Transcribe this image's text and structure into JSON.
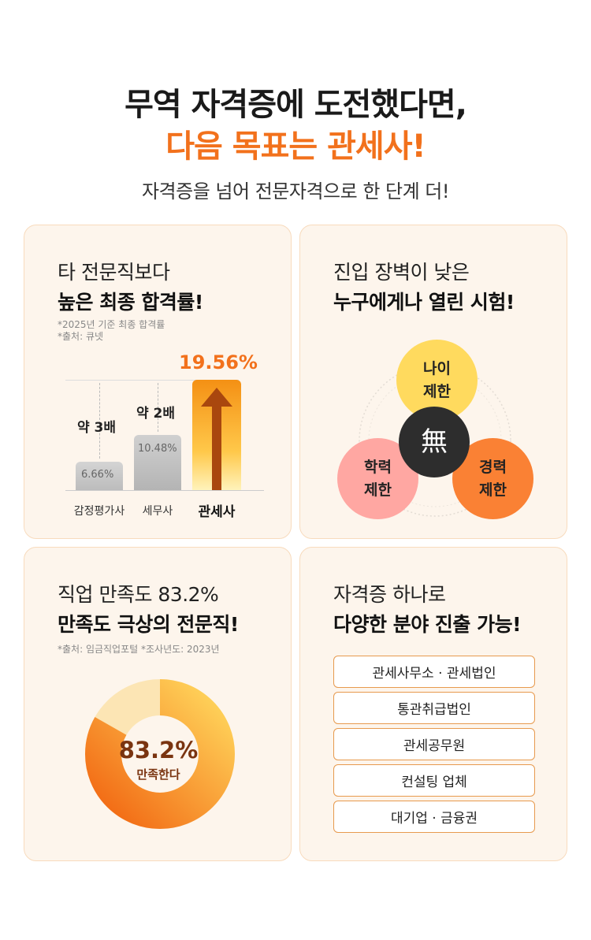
{
  "header": {
    "line1": "무역 자격증에 도전했다면,",
    "line2": "다음 목표는 관세사!",
    "subtitle": "자격증을 넘어 전문자격으로 한 단계 더!"
  },
  "card_pass_rate": {
    "title_line1": "타 전문직보다",
    "title_line2": "높은 최종 합격률!",
    "note_line1": "*2025년 기준 최종 합격률",
    "note_line2": "*출처: 큐넷",
    "multiplier_1": "약 3배",
    "multiplier_2": "약 2배"
  },
  "chart_data": {
    "type": "bar",
    "categories": [
      "감정평가사",
      "세무사",
      "관세사"
    ],
    "values": [
      6.66,
      10.48,
      19.56
    ],
    "value_labels": [
      "6.66%",
      "10.48%",
      "19.56%"
    ],
    "highlight_color": "#f2711c",
    "base_color": "#c4c4c4"
  },
  "card_entry": {
    "title_line1": "진입 장벽이 낮은",
    "title_line2": "누구에게나 열린 시험!",
    "age": [
      "나이",
      "제한"
    ],
    "education": [
      "학력",
      "제한"
    ],
    "career": [
      "경력",
      "제한"
    ],
    "center": "無"
  },
  "card_satisfaction": {
    "title_line1": "직업 만족도 83.2%",
    "title_line2": "만족도 극상의 전문직!",
    "note": "*출처: 임금직업포털 *조사년도: 2023년",
    "percent_label": "83.2%",
    "percent_value": 83.2,
    "caption": "만족한다",
    "color_main": "#f58220",
    "color_rest": "#fce5b4"
  },
  "card_career": {
    "title_line1": "자격증 하나로",
    "title_line2": "다양한 분야 진출 가능!",
    "items": [
      "관세사무소 · 관세법인",
      "통관취급법인",
      "관세공무원",
      "컨설팅 업체",
      "대기업 · 금융권"
    ]
  },
  "colors": {
    "accent": "#f2711c",
    "card_bg": "#fdf5ec",
    "card_border": "#f8dbbd"
  }
}
